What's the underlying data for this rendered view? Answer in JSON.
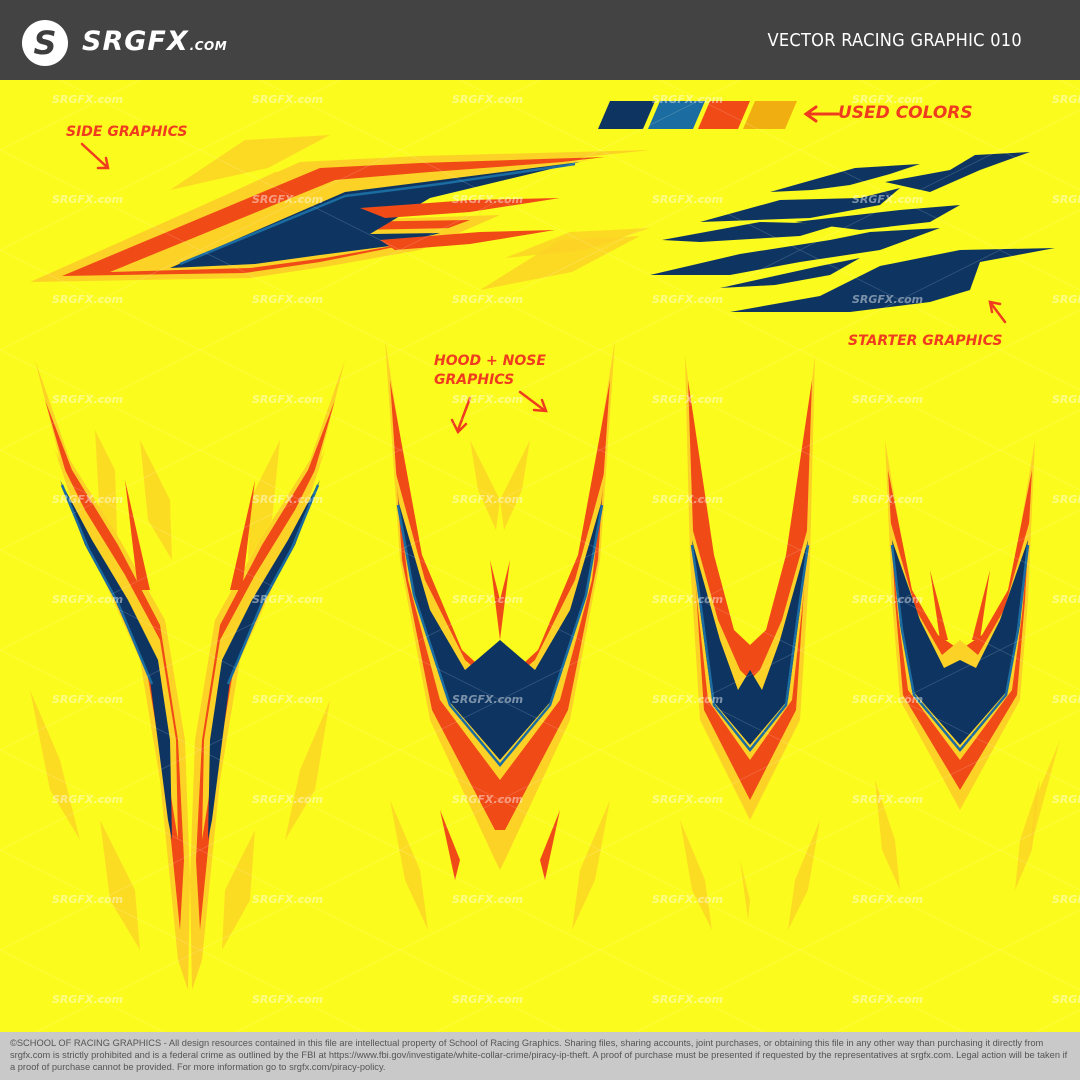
{
  "header": {
    "logo_letter": "S",
    "brand_name": "SRGFX",
    "brand_suffix": ".COM",
    "title": "VECTOR RACING GRAPHIC 010"
  },
  "annotations": {
    "side_graphics": "SIDE GRAPHICS",
    "used_colors": "USED COLORS",
    "starter_graphics": "STARTER GRAPHICS",
    "hood_nose_line1": "HOOD + NOSE",
    "hood_nose_line2": "GRAPHICS"
  },
  "palette": {
    "used_colors": [
      "#0e3562",
      "#1b6ca0",
      "#f04a17",
      "#f1ae11"
    ],
    "background": "#fbfb1e",
    "accent_light": "#fcd226",
    "annotation": "#f03c1e",
    "header_bg": "#434343",
    "footer_bg": "#c9c9c9"
  },
  "watermark": {
    "text": "SRGFX.com"
  },
  "footer": {
    "copyright": "©SCHOOL OF RACING GRAPHICS - All design resources contained in this file are intellectual property of School of Racing Graphics. Sharing files, sharing accounts, joint purchases, or obtaining this file in any other way than purchasing it directly from srgfx.com is strictly prohibited and is a federal crime as outlined by the FBI at https://www.fbi.gov/investigate/white-collar-crime/piracy-ip-theft. A proof of purchase must be presented if requested by the representatives at srgfx.com. Legal action will be taken if a proof of purchase cannot be provided. For more information go to srgfx.com/piracy-policy."
  }
}
